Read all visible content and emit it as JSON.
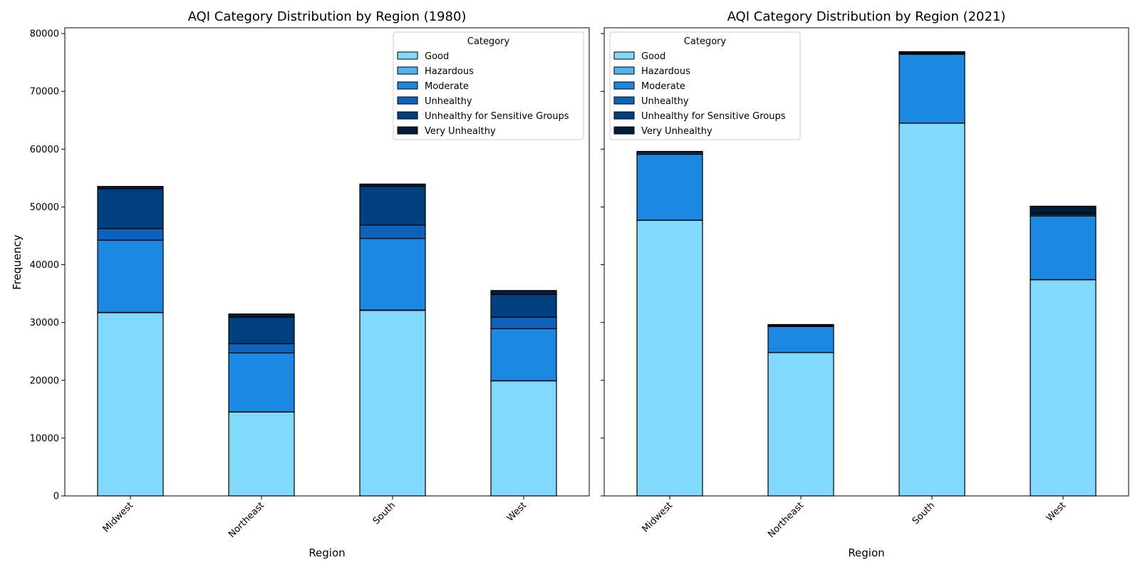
{
  "chart_data": [
    {
      "type": "bar",
      "stacked": true,
      "title": "AQI Category Distribution by Region (1980)",
      "xlabel": "Region",
      "ylabel": "Frequency",
      "ylim": [
        0,
        81000
      ],
      "yticks": [
        0,
        10000,
        20000,
        30000,
        40000,
        50000,
        60000,
        70000,
        80000
      ],
      "categories": [
        "Midwest",
        "Northeast",
        "South",
        "West"
      ],
      "legend": {
        "title": "Category",
        "placement": "upper right"
      },
      "series": [
        {
          "name": "Good",
          "color": "#81d9fe",
          "values": [
            31700,
            14500,
            32100,
            19900
          ]
        },
        {
          "name": "Hazardous",
          "color": "#4fb4ef",
          "values": [
            50,
            30,
            60,
            40
          ]
        },
        {
          "name": "Moderate",
          "color": "#1b89e1",
          "values": [
            12500,
            10200,
            12400,
            9000
          ]
        },
        {
          "name": "Unhealthy",
          "color": "#0f62ba",
          "values": [
            2000,
            1600,
            2300,
            2000
          ]
        },
        {
          "name": "Unhealthy for Sensitive Groups",
          "color": "#013f7f",
          "values": [
            6900,
            4600,
            6700,
            3900
          ]
        },
        {
          "name": "Very Unhealthy",
          "color": "#001c3a",
          "values": [
            400,
            550,
            400,
            700
          ]
        }
      ]
    },
    {
      "type": "bar",
      "stacked": true,
      "title": "AQI Category Distribution by Region (2021)",
      "xlabel": "Region",
      "ylabel": "",
      "ylim": [
        0,
        81000
      ],
      "yticks": [
        0,
        10000,
        20000,
        30000,
        40000,
        50000,
        60000,
        70000,
        80000
      ],
      "show_ytick_labels": false,
      "categories": [
        "Midwest",
        "Northeast",
        "South",
        "West"
      ],
      "legend": {
        "title": "Category",
        "placement": "upper left"
      },
      "series": [
        {
          "name": "Good",
          "color": "#81d9fe",
          "values": [
            47700,
            24800,
            64500,
            37400
          ]
        },
        {
          "name": "Hazardous",
          "color": "#4fb4ef",
          "values": [
            10,
            5,
            15,
            30
          ]
        },
        {
          "name": "Moderate",
          "color": "#1b89e1",
          "values": [
            11400,
            4500,
            11900,
            11000
          ]
        },
        {
          "name": "Unhealthy",
          "color": "#0f62ba",
          "values": [
            50,
            50,
            100,
            250
          ]
        },
        {
          "name": "Unhealthy for Sensitive Groups",
          "color": "#013f7f",
          "values": [
            350,
            150,
            150,
            250
          ]
        },
        {
          "name": "Very Unhealthy",
          "color": "#001c3a",
          "values": [
            100,
            150,
            200,
            1200
          ]
        }
      ]
    }
  ]
}
